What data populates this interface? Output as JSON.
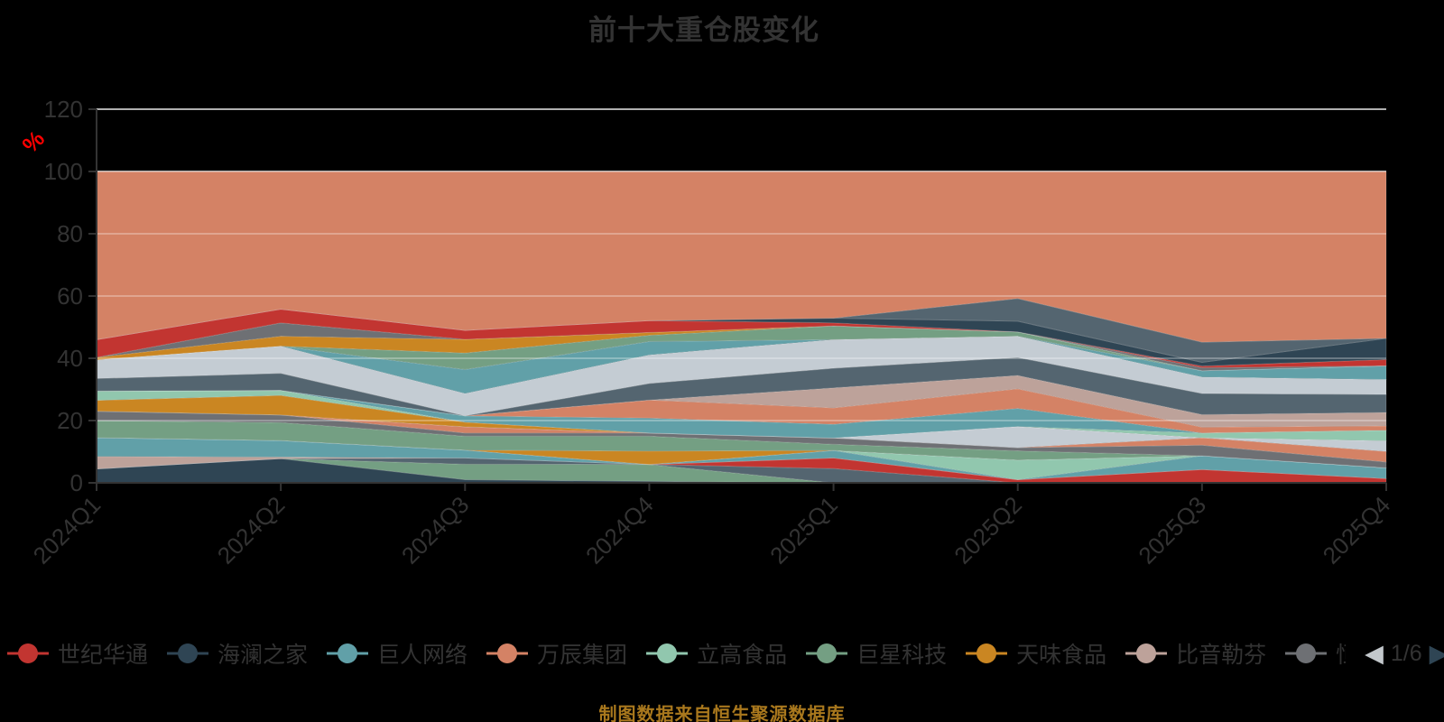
{
  "title": "前十大重仓股变化",
  "footer": "制图数据来自恒生聚源数据库",
  "background": "#000000",
  "text_color": "#333333",
  "legend": {
    "items": [
      {
        "label": "世纪华通",
        "color": "#c23531",
        "clipped": false
      },
      {
        "label": "海澜之家",
        "color": "#2f4554",
        "clipped": false
      },
      {
        "label": "巨人网络",
        "color": "#61a0a8",
        "clipped": false
      },
      {
        "label": "万辰集团",
        "color": "#d48265",
        "clipped": false
      },
      {
        "label": "立高食品",
        "color": "#91c7ae",
        "clipped": false
      },
      {
        "label": "巨星科技",
        "color": "#749f83",
        "clipped": false
      },
      {
        "label": "天味食品",
        "color": "#ca8622",
        "clipped": false
      },
      {
        "label": "比音勒芬",
        "color": "#bda29a",
        "clipped": false
      },
      {
        "label": "恒",
        "color": "#6e7074",
        "clipped": true
      }
    ],
    "pagination": {
      "text": "1/6",
      "prev_symbol": "◀",
      "next_symbol": "▶",
      "prev_color": "#c3c8cc",
      "next_color": "#2f4554"
    }
  },
  "chart_data": {
    "type": "area",
    "stacked": true,
    "title": "前十大重仓股变化",
    "x_categories": [
      "2024Q1",
      "2024Q2",
      "2024Q3",
      "2024Q4",
      "2025Q1",
      "2025Q2",
      "2025Q3",
      "2025Q4"
    ],
    "y_axis": {
      "min": 0,
      "max": 120,
      "step": 20,
      "unit": "%",
      "unit_color": "#ff0000"
    },
    "grid": true,
    "gridline_color_under": "#cccccc",
    "gridline_color_over": "rgba(255,255,255,0.38)",
    "axis_color": "#333333",
    "series": [
      {
        "id": "layer-01",
        "color": "#2f4554",
        "values": [
          4.5,
          7.8,
          1.0,
          0.5,
          0,
          0,
          0,
          0
        ]
      },
      {
        "id": "layer-02",
        "color": "#749f83",
        "values": [
          0,
          0,
          5.0,
          5.4,
          0,
          0,
          0,
          0
        ]
      },
      {
        "id": "layer-03",
        "color": "#546570",
        "values": [
          0,
          0,
          2.0,
          0,
          4.6,
          0,
          0,
          0
        ]
      },
      {
        "id": "layer-04",
        "color": "#c23531",
        "values": [
          0,
          0,
          0,
          0,
          3.4,
          1.0,
          4.3,
          1.4
        ]
      },
      {
        "id": "layer-05",
        "color": "#bda29a",
        "values": [
          4.0,
          0.5,
          0,
          0,
          0,
          0,
          0,
          0
        ]
      },
      {
        "id": "layer-06",
        "color": "#61a0a8",
        "values": [
          6.0,
          5.3,
          2.5,
          0,
          2.4,
          0,
          4.4,
          3.4
        ]
      },
      {
        "id": "layer-07",
        "color": "#91c7ae",
        "values": [
          0,
          0,
          0,
          0,
          0,
          6.3,
          0,
          0
        ]
      },
      {
        "id": "layer-08",
        "color": "#ca8622",
        "values": [
          0,
          0,
          0,
          4.3,
          0,
          0,
          0,
          0
        ]
      },
      {
        "id": "layer-09",
        "color": "#749f83",
        "values": [
          5.5,
          5.8,
          4.5,
          4.8,
          2.0,
          3.0,
          0,
          0
        ]
      },
      {
        "id": "layer-10",
        "color": "#6e7074",
        "values": [
          3.0,
          2.4,
          1.0,
          1.0,
          2.0,
          1.0,
          3.4,
          1.9
        ]
      },
      {
        "id": "layer-11",
        "color": "#d48265",
        "values": [
          0,
          0,
          2.0,
          0,
          0,
          0,
          2.4,
          3.4
        ]
      },
      {
        "id": "layer-12",
        "color": "#c4ccd3",
        "values": [
          0,
          0,
          0,
          0,
          0,
          6.8,
          0,
          3.4
        ]
      },
      {
        "id": "layer-13",
        "color": "#ca8622",
        "values": [
          3.5,
          6.3,
          1.5,
          0,
          0,
          0,
          0,
          0
        ]
      },
      {
        "id": "layer-14",
        "color": "#91c7ae",
        "values": [
          3.0,
          1.6,
          0,
          0,
          0,
          0,
          1.5,
          3.4
        ]
      },
      {
        "id": "layer-15",
        "color": "#61a0a8",
        "values": [
          0,
          0,
          2.0,
          4.8,
          4.4,
          5.8,
          0,
          0
        ]
      },
      {
        "id": "layer-16",
        "color": "#d48265",
        "values": [
          0,
          0,
          0,
          5.8,
          5.3,
          6.3,
          1.9,
          1.4
        ]
      },
      {
        "id": "layer-17",
        "color": "#bda29a",
        "values": [
          0,
          0,
          0,
          0,
          6.4,
          4.3,
          4.0,
          4.3
        ]
      },
      {
        "id": "layer-18",
        "color": "#546570",
        "values": [
          4.0,
          5.5,
          0,
          5.3,
          6.3,
          5.8,
          6.8,
          5.8
        ]
      },
      {
        "id": "layer-19",
        "color": "#c4ccd3",
        "values": [
          6.0,
          8.7,
          7.2,
          9.2,
          9.2,
          6.8,
          5.3,
          4.8
        ]
      },
      {
        "id": "layer-20",
        "color": "#61a0a8",
        "values": [
          0,
          0,
          7.7,
          4.3,
          0,
          0,
          2.0,
          4.4
        ]
      },
      {
        "id": "layer-21",
        "color": "#749f83",
        "values": [
          0,
          0,
          5.3,
          2.0,
          4.4,
          1.4,
          0,
          0
        ]
      },
      {
        "id": "layer-22",
        "color": "#ca8622",
        "values": [
          0.8,
          3.2,
          4.4,
          0.9,
          0,
          0,
          0,
          0
        ]
      },
      {
        "id": "layer-23",
        "color": "#6e7074",
        "values": [
          0,
          4.3,
          0,
          0,
          0,
          0,
          1.0,
          0
        ]
      },
      {
        "id": "layer-24",
        "color": "#c23531",
        "values": [
          5.7,
          4.4,
          2.9,
          3.8,
          1.0,
          0,
          0.5,
          2.0
        ]
      },
      {
        "id": "layer-25",
        "color": "#2f4554",
        "values": [
          0,
          0,
          0,
          0,
          1.5,
          3.4,
          1.2,
          6.8
        ]
      },
      {
        "id": "layer-26",
        "color": "#546570",
        "values": [
          0,
          0,
          0,
          0,
          0,
          7.3,
          6.5,
          0
        ]
      }
    ],
    "top_filler": {
      "id": "layer-top",
      "color": "#d48265",
      "fill_to": 100
    }
  }
}
